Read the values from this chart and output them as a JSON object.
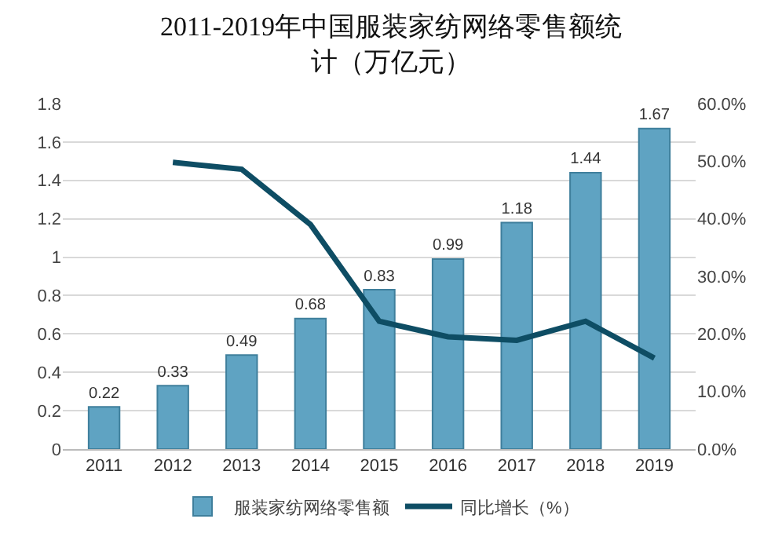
{
  "chart_data": {
    "type": "bar",
    "title": "2011-2019年中国服装家纺网络零售额统计（万亿元）",
    "categories": [
      "2011",
      "2012",
      "2013",
      "2014",
      "2015",
      "2016",
      "2017",
      "2018",
      "2019"
    ],
    "series": [
      {
        "name": "服装家纺网络零售额",
        "color": "#5fa3c2",
        "values": [
          0.22,
          0.33,
          0.49,
          0.68,
          0.83,
          0.99,
          1.18,
          1.44,
          1.67
        ],
        "value_labels": [
          "0.22",
          "0.33",
          "0.49",
          "0.68",
          "0.83",
          "0.99",
          "1.18",
          "1.44",
          "1.67"
        ]
      },
      {
        "name": "同比增长（%）",
        "color": "#0e4d64",
        "type": "line",
        "axis": "y2",
        "marker": "none",
        "values": [
          null,
          49.8,
          48.6,
          39,
          22.2,
          19.5,
          18.9,
          22.2,
          15.8
        ]
      }
    ],
    "ylim": [
      0,
      1.8
    ],
    "yticks": [
      0,
      0.2,
      0.4,
      0.6,
      0.8,
      1,
      1.2,
      1.4,
      1.6,
      1.8
    ],
    "y2lim": [
      0,
      60
    ],
    "y2ticks": [
      {
        "value": 0,
        "label": "0.0%"
      },
      {
        "value": 10,
        "label": "10.0%"
      },
      {
        "value": 20,
        "label": "20.0%"
      },
      {
        "value": 30,
        "label": "30.0%"
      },
      {
        "value": 40,
        "label": "40.0%"
      },
      {
        "value": 50,
        "label": "50.0%"
      },
      {
        "value": 60,
        "label": "60.0%"
      }
    ],
    "grid": "y",
    "legend": "bottom"
  }
}
